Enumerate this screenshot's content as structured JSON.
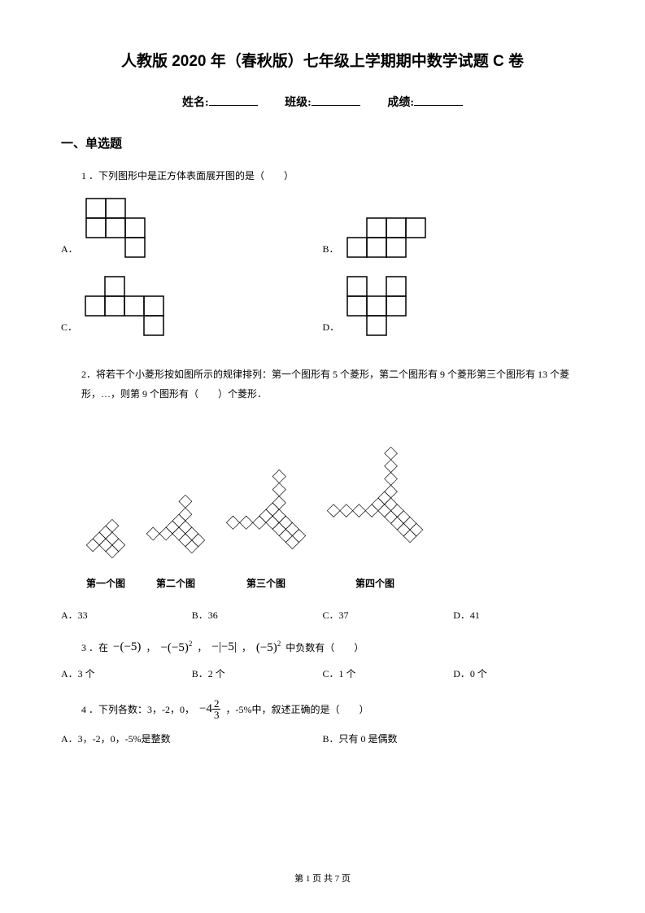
{
  "title": "人教版 2020 年（春秋版）七年级上学期期中数学试题 C 卷",
  "info": {
    "name_label": "姓名:",
    "class_label": "班级:",
    "score_label": "成绩:"
  },
  "section1_heading": "一、单选题",
  "q1": {
    "text": "1 ．下列图形中是正方体表面展开图的是（　　）",
    "optA": "A．",
    "optB": "B．",
    "optC": "C．",
    "optD": "D．"
  },
  "q2": {
    "text": "2．将若干个小菱形按如图所示的规律排列：第一个图形有 5 个菱形，第二个图形有 9 个菱形第三个图形有 13 个菱形，…，则第 9 个图形有（　　）个菱形．",
    "label1": "第一个图",
    "label2": "第二个图",
    "label3": "第三个图",
    "label4": "第四个图",
    "optA": "A．33",
    "optB": "B．36",
    "optC": "C．37",
    "optD": "D．41"
  },
  "q3": {
    "prefix": "3 ．在",
    "suffix": "中负数有（　　）",
    "optA": "A．3 个",
    "optB": "B．2 个",
    "optC": "C．1 个",
    "optD": "D．0 个"
  },
  "q4": {
    "prefix": "4 ．下列各数：3，-2，0，",
    "suffix": "，-5%中，叙述正确的是（　　）",
    "optA": "A．3，-2，0，-5%是整数",
    "optB": "B．只有 0 是偶数"
  },
  "footer": "第 1 页 共 7 页",
  "colors": {
    "stroke": "#000000",
    "bg": "#ffffff"
  },
  "cube_net": {
    "cell": 24,
    "stroke_width": 1.5,
    "A": [
      [
        0,
        0
      ],
      [
        1,
        0
      ],
      [
        0,
        1
      ],
      [
        1,
        1
      ],
      [
        2,
        1
      ],
      [
        2,
        2
      ]
    ],
    "B": [
      [
        1,
        0
      ],
      [
        2,
        0
      ],
      [
        3,
        0
      ],
      [
        0,
        1
      ],
      [
        1,
        1
      ],
      [
        2,
        1
      ]
    ],
    "C": [
      [
        1,
        0
      ],
      [
        0,
        1
      ],
      [
        1,
        1
      ],
      [
        2,
        1
      ],
      [
        3,
        1
      ],
      [
        3,
        2
      ]
    ],
    "D": [
      [
        0,
        0
      ],
      [
        2,
        0
      ],
      [
        0,
        1
      ],
      [
        1,
        1
      ],
      [
        2,
        1
      ],
      [
        1,
        2
      ]
    ]
  },
  "rhombus": {
    "size": 12,
    "stroke_width": 1
  }
}
